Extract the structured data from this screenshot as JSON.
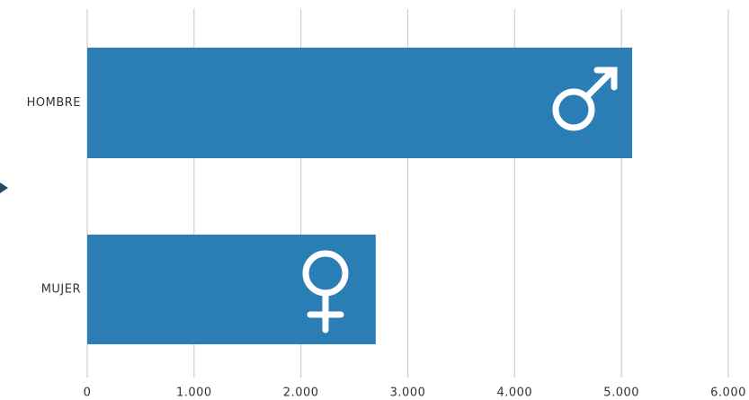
{
  "chart_data": {
    "type": "bar",
    "orientation": "horizontal",
    "categories": [
      "HOMBRE",
      "MUJER"
    ],
    "values": [
      5100,
      2700
    ],
    "color": "#2a7db5",
    "xlim": [
      0,
      6000
    ],
    "xticks": [
      0,
      {
        "value": 1000,
        "label": "1.000"
      },
      {
        "value": 2000,
        "label": "2.000"
      },
      {
        "value": 3000,
        "label": "3.000"
      },
      {
        "value": 4000,
        "label": "4.000"
      },
      {
        "value": 5000,
        "label": "5.000"
      },
      {
        "value": 6000,
        "label": "6.000"
      }
    ],
    "grid": true
  }
}
